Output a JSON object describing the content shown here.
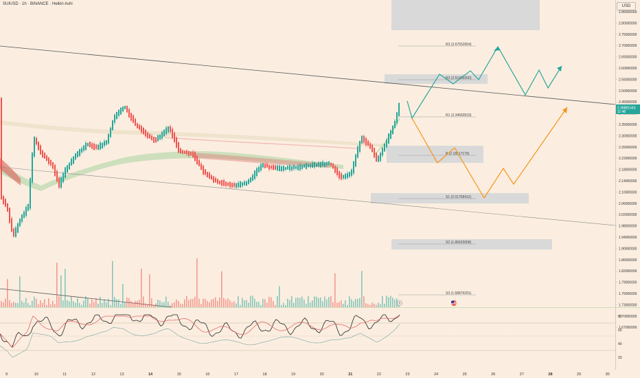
{
  "header": {
    "symbol_title": "SUIUSD · 1h · BINANCE · Heikin Ashi",
    "currency": "USD"
  },
  "price_axis": {
    "labels": [
      "2.85000000",
      "2.80000000",
      "2.75000000",
      "2.70000000",
      "2.65000000",
      "2.60000000",
      "2.55000000",
      "2.50000000",
      "2.45000000",
      "2.40000000",
      "2.35000000",
      "2.30000000",
      "2.26000000",
      "2.22000000",
      "2.18000000",
      "2.14000000",
      "2.10000000",
      "2.06000000",
      "2.02000000",
      "1.98000000",
      "1.94000000",
      "1.90000000",
      "1.86000000",
      "1.82000000",
      "1.79000000",
      "1.76000000",
      "1.73000000",
      "1.70000000",
      "1.67000000"
    ]
  },
  "current_price": {
    "value": "2.38881543",
    "countdown": "11:48"
  },
  "levels": [
    {
      "id": "r3",
      "label": "R3 (2.67552654)"
    },
    {
      "id": "r2",
      "label": "R2 (2.51409300)"
    },
    {
      "id": "r1",
      "label": "R1 (2.34660533)"
    },
    {
      "id": "p",
      "label": "P (2.18517179)"
    },
    {
      "id": "s1",
      "label": "S1 (2.01768412)"
    },
    {
      "id": "s2",
      "label": "S2 (1.85625058)"
    },
    {
      "id": "s3",
      "label": "S3 (1.68876291)"
    }
  ],
  "rsi_axis": {
    "labels": [
      "80",
      "60",
      "40",
      "20"
    ]
  },
  "time_axis": {
    "labels": [
      "9",
      "10",
      "11",
      "12",
      "13",
      "14",
      "15",
      "16",
      "17",
      "18",
      "19",
      "20",
      "21",
      "22",
      "23",
      "24",
      "25",
      "26",
      "27",
      "28",
      "29",
      "30"
    ],
    "bold": [
      "14",
      "21",
      "28"
    ]
  },
  "colors": {
    "bull": "#26a69a",
    "bear": "#ef5350",
    "bullish_path": "#26a69a",
    "bearish_path": "#f7931a",
    "current_price_tag": "#26a69a",
    "zone": "#d9d9d9"
  },
  "icons": {
    "flag": "us-flag-icon",
    "event": "lightning-icon"
  }
}
